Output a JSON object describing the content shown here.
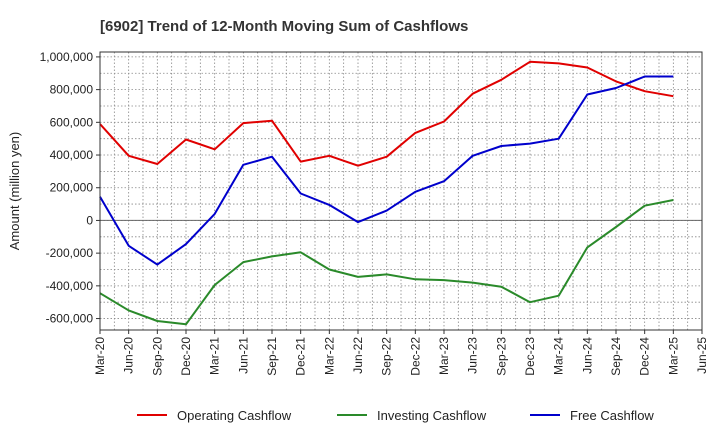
{
  "chart_data": {
    "type": "line",
    "title": "[6902]  Trend of 12-Month Moving Sum of Cashflows",
    "xlabel": "",
    "ylabel": "Amount (million yen)",
    "ylim": [
      -670000,
      1030000
    ],
    "yticks": [
      -600000,
      -400000,
      -200000,
      0,
      200000,
      400000,
      600000,
      800000,
      1000000
    ],
    "ytick_labels": [
      "-600,000",
      "-400,000",
      "-200,000",
      "0",
      "200,000",
      "400,000",
      "600,000",
      "800,000",
      "1,000,000"
    ],
    "x": [
      "Mar-20",
      "Jun-20",
      "Sep-20",
      "Dec-20",
      "Mar-21",
      "Jun-21",
      "Sep-21",
      "Dec-21",
      "Mar-22",
      "Jun-22",
      "Sep-22",
      "Dec-22",
      "Mar-23",
      "Jun-23",
      "Sep-23",
      "Dec-23",
      "Mar-24",
      "Jun-24",
      "Sep-24",
      "Dec-24",
      "Mar-25",
      "Jun-25"
    ],
    "grid": true,
    "legend": "bottom",
    "series": [
      {
        "name": "Operating Cashflow",
        "color": "#e00000",
        "values": [
          590000,
          395000,
          345000,
          495000,
          435000,
          595000,
          610000,
          360000,
          395000,
          335000,
          390000,
          535000,
          605000,
          775000,
          860000,
          970000,
          960000,
          935000,
          850000,
          790000,
          760000,
          null
        ]
      },
      {
        "name": "Investing Cashflow",
        "color": "#2a8a2a",
        "values": [
          -445000,
          -550000,
          -615000,
          -635000,
          -395000,
          -255000,
          -220000,
          -195000,
          -300000,
          -345000,
          -330000,
          -360000,
          -365000,
          -380000,
          -405000,
          -500000,
          -460000,
          -165000,
          -40000,
          90000,
          125000,
          null
        ]
      },
      {
        "name": "Free Cashflow",
        "color": "#0000cc",
        "values": [
          145000,
          -155000,
          -270000,
          -145000,
          40000,
          340000,
          390000,
          165000,
          95000,
          -10000,
          60000,
          175000,
          240000,
          395000,
          455000,
          470000,
          500000,
          770000,
          810000,
          880000,
          880000,
          null
        ]
      }
    ]
  }
}
